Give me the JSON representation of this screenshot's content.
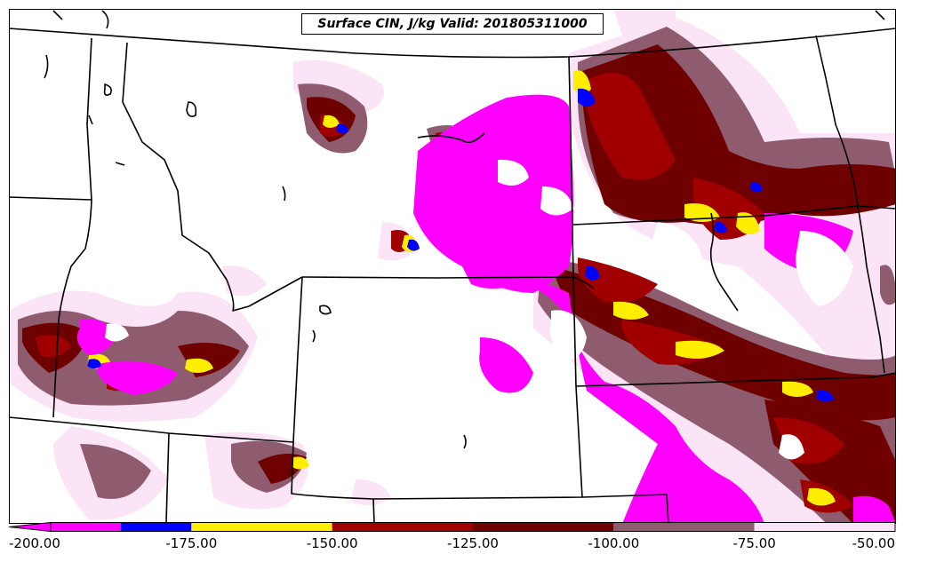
{
  "title": "Surface CIN, J/kg Valid: 201805311000",
  "colorbar": {
    "ticks": [
      "-200.00",
      "-175.00",
      "-150.00",
      "-125.00",
      "-100.00",
      "-75.00",
      "-50.00"
    ],
    "bins": [
      {
        "from": -200,
        "to": -187.5,
        "color": "#ff00ff"
      },
      {
        "from": -187.5,
        "to": -175,
        "color": "#0000ff"
      },
      {
        "from": -175,
        "to": -150,
        "color": "#ffee00"
      },
      {
        "from": -150,
        "to": -125,
        "color": "#a00000"
      },
      {
        "from": -125,
        "to": -100,
        "color": "#6e0000"
      },
      {
        "from": -100,
        "to": -75,
        "color": "#8e5c6e"
      },
      {
        "from": -75,
        "to": -50,
        "color": "#fbe4f6"
      }
    ]
  },
  "colors": {
    "magenta": "#ff00ff",
    "blue": "#0000ff",
    "yellow": "#ffee00",
    "red": "#a00000",
    "dark_red": "#6e0000",
    "mauve": "#8e5c6e",
    "pale_pink": "#fbe4f6",
    "boundary": "#000000"
  }
}
